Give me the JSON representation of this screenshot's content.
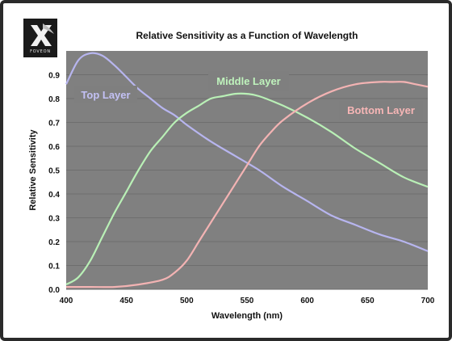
{
  "logo": {
    "text": "FOVEON"
  },
  "chart_data": {
    "type": "line",
    "title": "Relative Sensitivity as a Function of Wavelength",
    "xlabel": "Wavelength (nm)",
    "ylabel": "Relative Sensitivity",
    "xlim": [
      400,
      700
    ],
    "ylim": [
      0,
      1.0
    ],
    "x_ticks": [
      400,
      450,
      500,
      550,
      600,
      650,
      700
    ],
    "y_ticks": [
      0.0,
      0.1,
      0.2,
      0.3,
      0.4,
      0.5,
      0.6,
      0.7,
      0.8,
      0.9
    ],
    "grid": true,
    "plot_background": "#808080",
    "series": [
      {
        "name": "Top Layer",
        "color": "#b7b5ef",
        "label_bg": "#7f7f7f",
        "label_color": "#c3c1f5",
        "x": [
          400,
          410,
          420,
          430,
          440,
          450,
          460,
          470,
          480,
          490,
          500,
          520,
          540,
          560,
          580,
          600,
          620,
          640,
          660,
          680,
          700
        ],
        "y": [
          0.86,
          0.96,
          0.99,
          0.98,
          0.94,
          0.89,
          0.84,
          0.8,
          0.76,
          0.73,
          0.69,
          0.62,
          0.56,
          0.5,
          0.43,
          0.37,
          0.31,
          0.27,
          0.23,
          0.2,
          0.16
        ]
      },
      {
        "name": "Middle Layer",
        "color": "#b9f0b6",
        "label_bg": "#7f7f7f",
        "label_color": "#bff3bc",
        "x": [
          400,
          410,
          420,
          430,
          440,
          450,
          460,
          470,
          480,
          490,
          500,
          510,
          520,
          530,
          540,
          550,
          560,
          580,
          600,
          620,
          640,
          660,
          680,
          700
        ],
        "y": [
          0.02,
          0.05,
          0.12,
          0.22,
          0.32,
          0.41,
          0.5,
          0.58,
          0.64,
          0.7,
          0.74,
          0.77,
          0.8,
          0.81,
          0.82,
          0.82,
          0.81,
          0.77,
          0.72,
          0.66,
          0.59,
          0.53,
          0.47,
          0.43
        ]
      },
      {
        "name": "Bottom Layer",
        "color": "#f3b3b3",
        "label_bg": "#7f7f7f",
        "label_color": "#f7b6b6",
        "x": [
          400,
          420,
          440,
          460,
          480,
          490,
          500,
          510,
          520,
          530,
          540,
          550,
          560,
          570,
          580,
          600,
          620,
          640,
          660,
          670,
          680,
          690,
          700
        ],
        "y": [
          0.01,
          0.01,
          0.01,
          0.02,
          0.04,
          0.07,
          0.12,
          0.2,
          0.28,
          0.36,
          0.44,
          0.52,
          0.6,
          0.66,
          0.71,
          0.78,
          0.83,
          0.86,
          0.87,
          0.87,
          0.87,
          0.86,
          0.85
        ]
      }
    ]
  }
}
